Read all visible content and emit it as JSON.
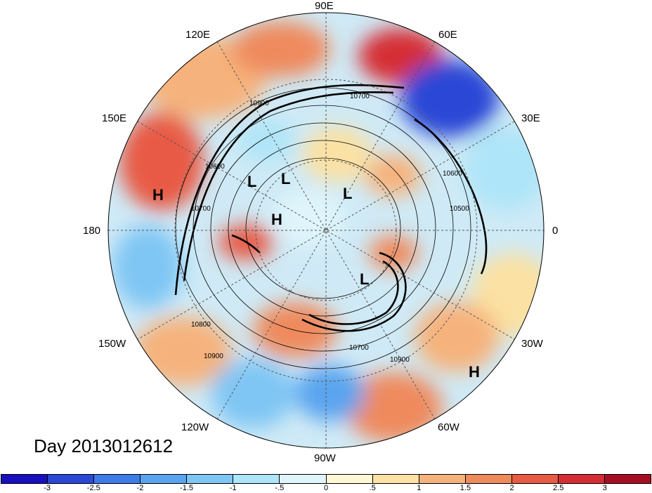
{
  "title": "Day 2013012612",
  "longitude_labels": [
    {
      "id": "90e",
      "text": "90E"
    },
    {
      "id": "60e",
      "text": "60E"
    },
    {
      "id": "120e",
      "text": "120E"
    },
    {
      "id": "30e",
      "text": "30E"
    },
    {
      "id": "150e",
      "text": "150E"
    },
    {
      "id": "0",
      "text": "0"
    },
    {
      "id": "180",
      "text": "180"
    },
    {
      "id": "150w",
      "text": "150W"
    },
    {
      "id": "30w",
      "text": "30W"
    },
    {
      "id": "120w",
      "text": "120W"
    },
    {
      "id": "60w",
      "text": "60W"
    },
    {
      "id": "90w",
      "text": "90W"
    }
  ],
  "pressure_centers": [
    {
      "type": "H",
      "id": "h-pacific"
    },
    {
      "type": "L",
      "id": "l-siberia-1"
    },
    {
      "type": "L",
      "id": "l-siberia-2"
    },
    {
      "type": "H",
      "id": "h-arctic"
    },
    {
      "type": "L",
      "id": "l-arctic"
    },
    {
      "type": "L",
      "id": "l-canada"
    },
    {
      "type": "H",
      "id": "h-atlantic"
    }
  ],
  "contour_labels": [
    "10900",
    "10700",
    "10600",
    "10700",
    "10500",
    "10600",
    "10800",
    "10900",
    "10700",
    "10900"
  ],
  "colorbar": {
    "colors": [
      "#1a0fbf",
      "#2b47d6",
      "#3f7be8",
      "#5aa4ef",
      "#7fc6f4",
      "#aee5f8",
      "#dff5fb",
      "#fff7d6",
      "#fbe1a3",
      "#f6b27c",
      "#ef8a5d",
      "#e85a44",
      "#d52d35",
      "#a60f22"
    ],
    "ticks": [
      "-3",
      "-2.5",
      "-2",
      "-1.5",
      "-1",
      "-.5",
      "0",
      ".5",
      "1",
      "1.5",
      "2",
      "2.5",
      "3"
    ]
  }
}
